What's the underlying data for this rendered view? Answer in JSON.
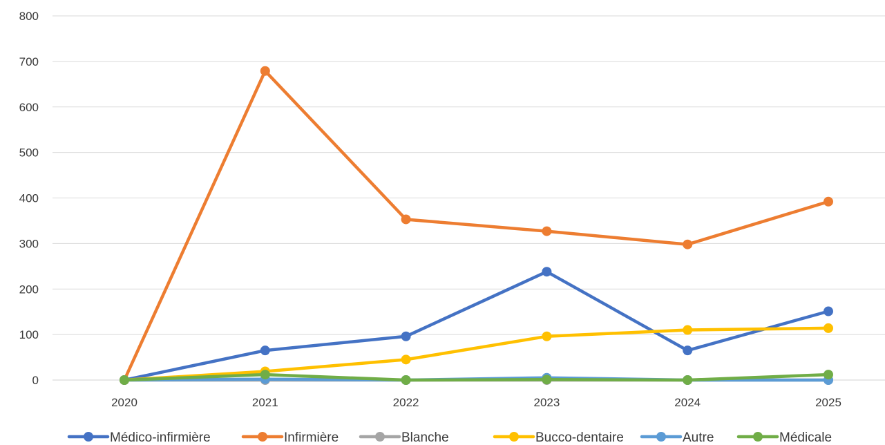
{
  "chart_data": {
    "type": "line",
    "title": "",
    "xlabel": "",
    "ylabel": "",
    "categories": [
      "2020",
      "2021",
      "2022",
      "2023",
      "2024",
      "2025"
    ],
    "ylim": [
      0,
      800
    ],
    "yticks": [
      0,
      100,
      200,
      300,
      400,
      500,
      600,
      700,
      800
    ],
    "grid": true,
    "legend_position": "bottom",
    "series": [
      {
        "name": "Médico-infirmière",
        "color": "#4472c4",
        "values": [
          0,
          65,
          96,
          238,
          65,
          151
        ]
      },
      {
        "name": "Infirmière",
        "color": "#ed7d31",
        "values": [
          0,
          679,
          353,
          327,
          298,
          392
        ]
      },
      {
        "name": "Blanche",
        "color": "#a5a5a5",
        "values": [
          0,
          0,
          0,
          0,
          0,
          0
        ]
      },
      {
        "name": "Bucco-dentaire",
        "color": "#ffc000",
        "values": [
          0,
          19,
          45,
          96,
          110,
          114
        ]
      },
      {
        "name": "Autre",
        "color": "#5b9bd5",
        "values": [
          0,
          2,
          0,
          5,
          0,
          0
        ]
      },
      {
        "name": "Médicale",
        "color": "#70ad47",
        "values": [
          0,
          12,
          0,
          1,
          0,
          12
        ]
      }
    ]
  }
}
